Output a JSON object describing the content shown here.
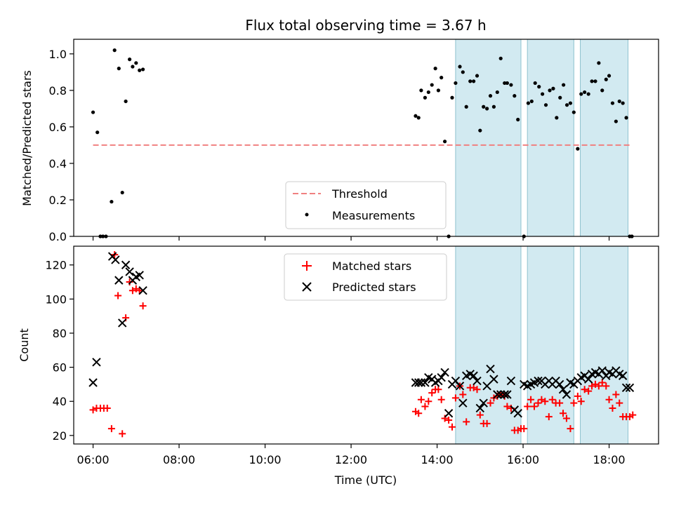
{
  "chart_data": [
    {
      "type": "scatter",
      "title": "Flux total observing time = 3.67 h",
      "ylabel": "Matched/Predicted stars",
      "xlabel": "",
      "xlim": [
        5.55,
        19.15
      ],
      "ylim": [
        0,
        1.08
      ],
      "yticks": [
        "0.0",
        "0.2",
        "0.4",
        "0.6",
        "0.8",
        "1.0"
      ],
      "shaded_intervals": [
        [
          14.43,
          15.95
        ],
        [
          16.1,
          17.18
        ],
        [
          17.33,
          18.44
        ]
      ],
      "shade_color": "#add8e6",
      "threshold": {
        "name": "Threshold",
        "y": 0.5,
        "x_range": [
          6.0,
          18.53
        ],
        "color": "#f08080"
      },
      "series": [
        {
          "name": "Measurements",
          "color": "#000000",
          "x": [
            6.0,
            6.1,
            6.17,
            6.23,
            6.3,
            6.43,
            6.5,
            6.6,
            6.68,
            6.76,
            6.85,
            6.92,
            7.0,
            7.08,
            7.16,
            13.5,
            13.57,
            13.63,
            13.72,
            13.8,
            13.88,
            13.96,
            14.03,
            14.1,
            14.18,
            14.27,
            14.35,
            14.43,
            14.53,
            14.6,
            14.68,
            14.77,
            14.85,
            14.93,
            15.0,
            15.08,
            15.16,
            15.24,
            15.32,
            15.4,
            15.48,
            15.57,
            15.63,
            15.72,
            15.8,
            15.88,
            16.02,
            16.12,
            16.2,
            16.28,
            16.37,
            16.45,
            16.53,
            16.62,
            16.7,
            16.78,
            16.86,
            16.94,
            17.02,
            17.1,
            17.18,
            17.27,
            17.35,
            17.43,
            17.52,
            17.6,
            17.68,
            17.76,
            17.84,
            17.93,
            18.0,
            18.08,
            18.16,
            18.24,
            18.32,
            18.4,
            18.48,
            18.53
          ],
          "y": [
            0.68,
            0.57,
            0.0,
            0.0,
            0.0,
            0.19,
            1.02,
            0.92,
            0.24,
            0.74,
            0.97,
            0.93,
            0.95,
            0.91,
            0.915,
            0.66,
            0.65,
            0.8,
            0.76,
            0.79,
            0.83,
            0.92,
            0.8,
            0.87,
            0.52,
            0.0,
            0.76,
            0.84,
            0.93,
            0.9,
            0.71,
            0.85,
            0.85,
            0.88,
            0.58,
            0.71,
            0.7,
            0.77,
            0.71,
            0.79,
            0.975,
            0.84,
            0.84,
            0.83,
            0.77,
            0.64,
            0.0,
            0.73,
            0.74,
            0.84,
            0.82,
            0.78,
            0.72,
            0.8,
            0.81,
            0.65,
            0.76,
            0.83,
            0.72,
            0.73,
            0.68,
            0.48,
            0.78,
            0.79,
            0.78,
            0.85,
            0.85,
            0.95,
            0.8,
            0.86,
            0.88,
            0.73,
            0.63,
            0.74,
            0.73,
            0.65,
            0.0,
            0.0
          ]
        }
      ]
    },
    {
      "type": "scatter",
      "title": "",
      "xlabel": "Time (UTC)",
      "ylabel": "Count",
      "xlim": [
        5.55,
        19.15
      ],
      "ylim": [
        15,
        131
      ],
      "yticks": [
        "20",
        "40",
        "60",
        "80",
        "100",
        "120"
      ],
      "xticks": [
        "06:00",
        "08:00",
        "10:00",
        "12:00",
        "14:00",
        "16:00",
        "18:00"
      ],
      "shaded_intervals": [
        [
          14.43,
          15.95
        ],
        [
          16.1,
          17.18
        ],
        [
          17.33,
          18.44
        ]
      ],
      "shade_color": "#add8e6",
      "series": [
        {
          "name": "Matched stars",
          "color": "#ff0000",
          "marker": "plus",
          "x": [
            6.0,
            6.08,
            6.17,
            6.25,
            6.33,
            6.43,
            6.5,
            6.58,
            6.68,
            6.76,
            6.85,
            6.92,
            7.0,
            7.08,
            7.16,
            13.5,
            13.57,
            13.63,
            13.72,
            13.8,
            13.88,
            13.96,
            14.03,
            14.1,
            14.18,
            14.27,
            14.35,
            14.43,
            14.53,
            14.6,
            14.68,
            14.77,
            14.85,
            14.93,
            15.0,
            15.08,
            15.16,
            15.24,
            15.32,
            15.4,
            15.48,
            15.57,
            15.63,
            15.72,
            15.8,
            15.88,
            15.95,
            16.02,
            16.1,
            16.18,
            16.26,
            16.35,
            16.43,
            16.51,
            16.6,
            16.68,
            16.76,
            16.85,
            16.93,
            17.01,
            17.1,
            17.18,
            17.27,
            17.35,
            17.43,
            17.52,
            17.6,
            17.68,
            17.76,
            17.84,
            17.93,
            18.0,
            18.08,
            18.16,
            18.24,
            18.32,
            18.4,
            18.48,
            18.55
          ],
          "y": [
            35,
            36,
            36,
            36,
            36,
            24,
            126,
            102,
            21,
            89,
            110,
            105,
            106,
            105,
            96,
            34,
            33,
            41,
            37,
            40,
            45,
            47,
            47,
            41,
            30,
            29,
            25,
            42,
            49,
            44,
            28,
            48,
            48,
            47,
            32,
            27,
            27,
            39,
            42,
            43,
            44,
            43,
            37,
            36,
            23,
            23,
            24,
            24,
            37,
            41,
            37,
            39,
            41,
            40,
            31,
            41,
            39,
            39,
            33,
            30,
            24,
            39,
            43,
            40,
            47,
            46,
            49,
            50,
            49,
            51,
            49,
            41,
            36,
            44,
            39,
            31,
            31,
            31,
            32
          ]
        },
        {
          "name": "Predicted stars",
          "color": "#000000",
          "marker": "x",
          "x": [
            6.0,
            6.08,
            6.45,
            6.52,
            6.6,
            6.68,
            6.76,
            6.85,
            6.92,
            7.0,
            7.08,
            7.16,
            13.5,
            13.57,
            13.63,
            13.72,
            13.8,
            13.88,
            13.96,
            14.03,
            14.1,
            14.18,
            14.27,
            14.35,
            14.43,
            14.53,
            14.6,
            14.68,
            14.77,
            14.85,
            14.93,
            15.0,
            15.08,
            15.16,
            15.24,
            15.32,
            15.4,
            15.48,
            15.57,
            15.63,
            15.72,
            15.8,
            15.88,
            16.02,
            16.1,
            16.18,
            16.26,
            16.35,
            16.43,
            16.51,
            16.6,
            16.68,
            16.76,
            16.85,
            16.93,
            17.01,
            17.1,
            17.18,
            17.27,
            17.35,
            17.43,
            17.52,
            17.6,
            17.68,
            17.76,
            17.84,
            17.93,
            18.0,
            18.08,
            18.16,
            18.24,
            18.32,
            18.4,
            18.48
          ],
          "y": [
            51,
            63,
            125,
            123,
            111,
            86,
            120,
            116,
            111,
            113,
            114,
            105,
            51,
            51,
            51,
            51,
            54,
            53,
            51,
            52,
            54,
            57,
            33,
            50,
            52,
            49,
            39,
            55,
            56,
            55,
            52,
            36,
            39,
            49,
            59,
            53,
            44,
            44,
            44,
            44,
            52,
            35,
            33,
            50,
            49,
            50,
            51,
            52,
            52,
            50,
            52,
            50,
            52,
            50,
            47,
            44,
            51,
            50,
            52,
            54,
            55,
            53,
            56,
            57,
            56,
            58,
            55,
            57,
            56,
            58,
            56,
            55,
            48,
            48
          ]
        }
      ]
    }
  ]
}
